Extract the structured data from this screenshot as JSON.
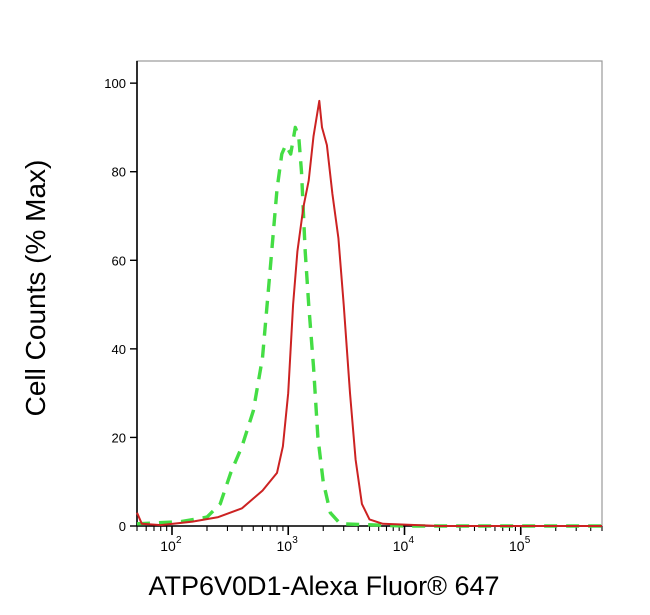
{
  "chart_data": {
    "type": "line",
    "title": "",
    "xlabel": "ATP6V0D1-Alexa Fluor® 647",
    "ylabel": "Cell Counts (% Max)",
    "x_scale": "log",
    "xlim": [
      50,
      500000
    ],
    "ylim": [
      0,
      105
    ],
    "y_ticks": [
      0,
      20,
      40,
      60,
      80,
      100
    ],
    "y_tick_labels": [
      "0",
      "20",
      "40",
      "60",
      "80",
      "100"
    ],
    "x_ticks": [
      {
        "value": 100,
        "base": "10",
        "exp": "2"
      },
      {
        "value": 1000,
        "base": "10",
        "exp": "3"
      },
      {
        "value": 10000,
        "base": "10",
        "exp": "4"
      },
      {
        "value": 100000,
        "base": "10",
        "exp": "5"
      }
    ],
    "grid": false,
    "legend": "none",
    "series": [
      {
        "color": "#44dd44",
        "style": "dashed",
        "points": [
          [
            50,
            0.5
          ],
          [
            120,
            1
          ],
          [
            200,
            2
          ],
          [
            260,
            5
          ],
          [
            320,
            12
          ],
          [
            400,
            18
          ],
          [
            500,
            26
          ],
          [
            600,
            38
          ],
          [
            700,
            58
          ],
          [
            800,
            76
          ],
          [
            880,
            84
          ],
          [
            950,
            86
          ],
          [
            1050,
            84
          ],
          [
            1150,
            90
          ],
          [
            1230,
            88
          ],
          [
            1300,
            80
          ],
          [
            1400,
            62
          ],
          [
            1500,
            50
          ],
          [
            1650,
            36
          ],
          [
            1800,
            20
          ],
          [
            2000,
            10
          ],
          [
            2300,
            3
          ],
          [
            2800,
            0.5
          ],
          [
            10000,
            0
          ],
          [
            500000,
            0
          ]
        ]
      },
      {
        "color": "#cc2222",
        "style": "solid",
        "points": [
          [
            50,
            3
          ],
          [
            55,
            0.5
          ],
          [
            80,
            0.2
          ],
          [
            150,
            1
          ],
          [
            250,
            2
          ],
          [
            400,
            4
          ],
          [
            600,
            8
          ],
          [
            800,
            12
          ],
          [
            900,
            18
          ],
          [
            1000,
            30
          ],
          [
            1100,
            50
          ],
          [
            1200,
            62
          ],
          [
            1350,
            72
          ],
          [
            1500,
            78
          ],
          [
            1650,
            88
          ],
          [
            1850,
            96
          ],
          [
            1950,
            90
          ],
          [
            2150,
            86
          ],
          [
            2400,
            75
          ],
          [
            2700,
            65
          ],
          [
            3000,
            50
          ],
          [
            3400,
            30
          ],
          [
            3800,
            15
          ],
          [
            4300,
            5
          ],
          [
            5000,
            1.5
          ],
          [
            6500,
            0.5
          ],
          [
            20000,
            0
          ],
          [
            500000,
            0
          ]
        ]
      }
    ]
  }
}
